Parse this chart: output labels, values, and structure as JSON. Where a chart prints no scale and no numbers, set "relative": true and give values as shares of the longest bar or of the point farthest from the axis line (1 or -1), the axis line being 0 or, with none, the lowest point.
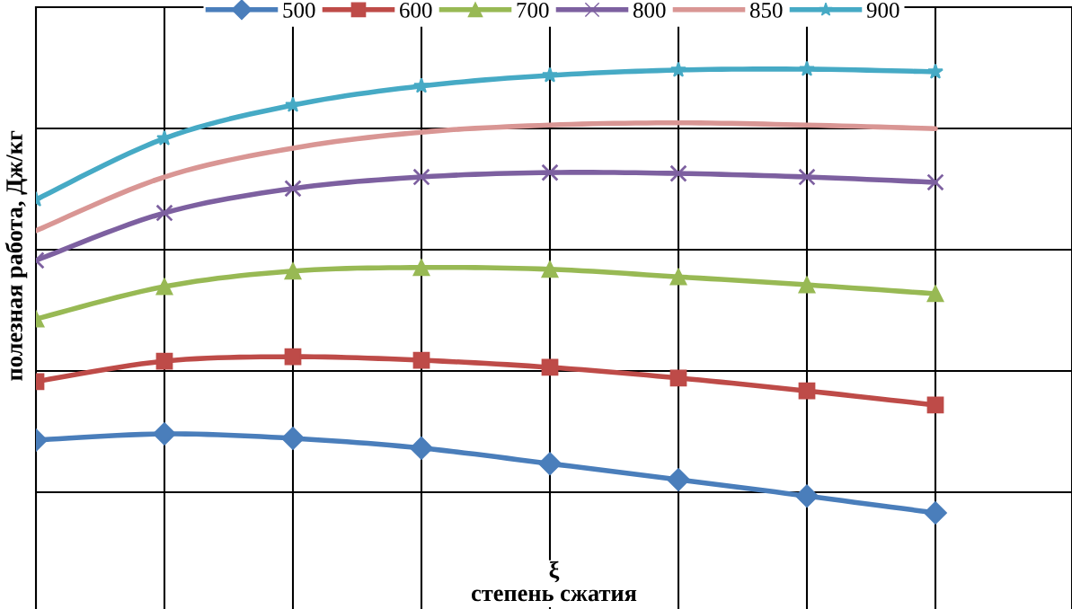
{
  "chart_data": {
    "type": "line",
    "relative": true,
    "xlabel": "ξ\nстепень сжатия",
    "ylabel": "полезная работа, Дж/кг",
    "categories": [
      null,
      null,
      null,
      null,
      null,
      null,
      null,
      null
    ],
    "grid": true,
    "legend": "top",
    "line_style": "solid",
    "series": [
      {
        "name": "500",
        "color": "#4a7ebb",
        "marker": "diamond",
        "values": [
          0.164,
          0.178,
          0.168,
          0.146,
          0.111,
          0.075,
          0.038,
          0
        ]
      },
      {
        "name": "600",
        "color": "#be4b48",
        "marker": "square",
        "values": [
          0.296,
          0.342,
          0.352,
          0.344,
          0.328,
          0.304,
          0.275,
          0.243
        ]
      },
      {
        "name": "700",
        "color": "#98b954",
        "marker": "triangle",
        "values": [
          0.437,
          0.51,
          0.545,
          0.553,
          0.549,
          0.532,
          0.514,
          0.494
        ]
      },
      {
        "name": "800",
        "color": "#7d60a0",
        "marker": "cross",
        "values": [
          0.569,
          0.676,
          0.731,
          0.757,
          0.767,
          0.765,
          0.757,
          0.745
        ]
      },
      {
        "name": "850",
        "color": "#d99694",
        "marker": "none",
        "values": [
          0.636,
          0.757,
          0.822,
          0.858,
          0.874,
          0.879,
          0.874,
          0.866
        ]
      },
      {
        "name": "900",
        "color": "#46aac5",
        "marker": "star",
        "values": [
          0.706,
          0.844,
          0.919,
          0.962,
          0.986,
          0.998,
          1,
          0.994
        ]
      }
    ]
  }
}
